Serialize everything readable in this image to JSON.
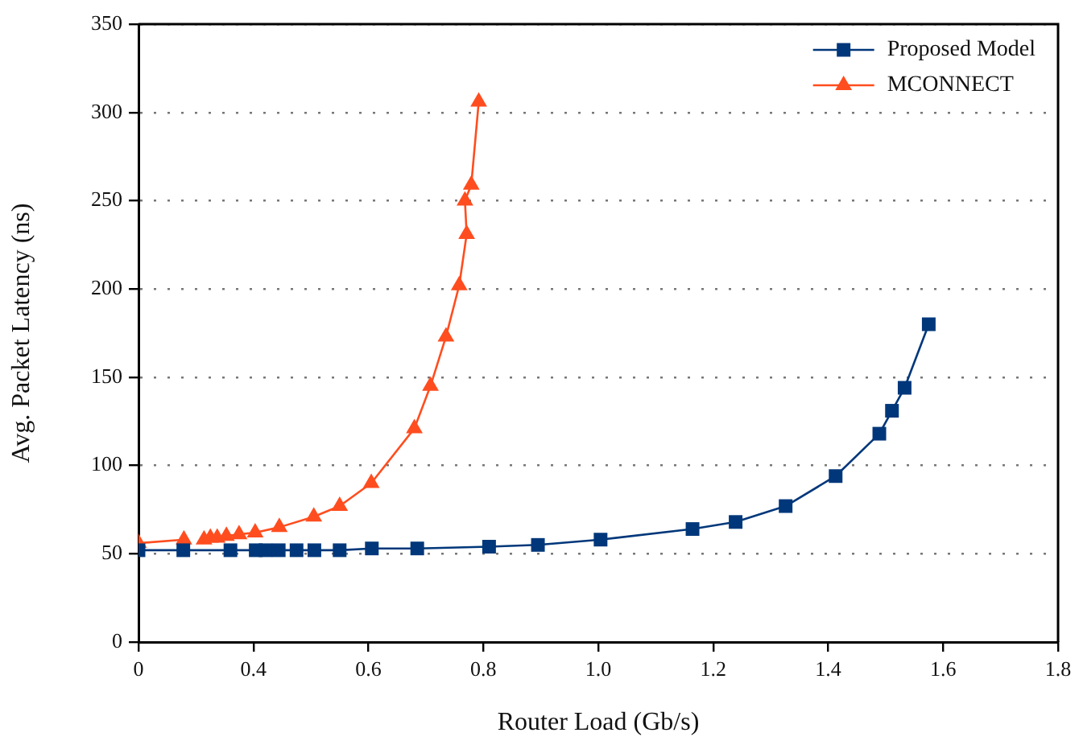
{
  "chart_data": {
    "type": "line",
    "xlabel": "Router Load (Gb/s)",
    "ylabel": "Avg. Packet Latency (ns)",
    "xlim": [
      0.2,
      1.8
    ],
    "xticks": [
      {
        "value": 0.2,
        "label": "0"
      },
      0.4,
      0.6,
      0.8,
      {
        "value": 1.0,
        "label": "1.0"
      },
      1.2,
      1.4,
      1.6,
      1.8
    ],
    "ylim": [
      0,
      350
    ],
    "yticks": [
      0,
      50,
      100,
      150,
      200,
      250,
      300,
      350
    ],
    "grid": "y",
    "legend": "top right",
    "line_style": "solid",
    "series": [
      {
        "name": "Proposed Model",
        "color": "#00377a",
        "marker": "square",
        "x": [
          0.2,
          0.278,
          0.36,
          0.404,
          0.421,
          0.444,
          0.475,
          0.506,
          0.55,
          0.606,
          0.685,
          0.81,
          0.895,
          1.004,
          1.164,
          1.239,
          1.326,
          1.413,
          1.489,
          1.511,
          1.533,
          1.575
        ],
        "values": [
          52,
          52,
          52,
          52,
          52,
          52,
          52,
          52,
          52,
          53,
          53,
          54,
          55,
          58,
          64,
          68,
          77,
          94,
          118,
          131,
          144,
          180
        ]
      },
      {
        "name": "MCONNECT",
        "color": "#ff4d1f",
        "marker": "triangle",
        "x": [
          0.2,
          0.279,
          0.305,
          0.314,
          0.325,
          0.337,
          0.353,
          0.375,
          0.403,
          0.445,
          0.505,
          0.55,
          0.605,
          0.68,
          0.708,
          0.735,
          0.758,
          0.771,
          0.768,
          0.779,
          0.792
        ],
        "values": [
          56,
          58,
          null,
          58,
          59,
          59,
          60,
          61,
          62,
          65,
          71,
          77,
          90,
          121,
          145,
          173,
          202,
          231,
          250,
          259,
          306
        ]
      }
    ]
  }
}
